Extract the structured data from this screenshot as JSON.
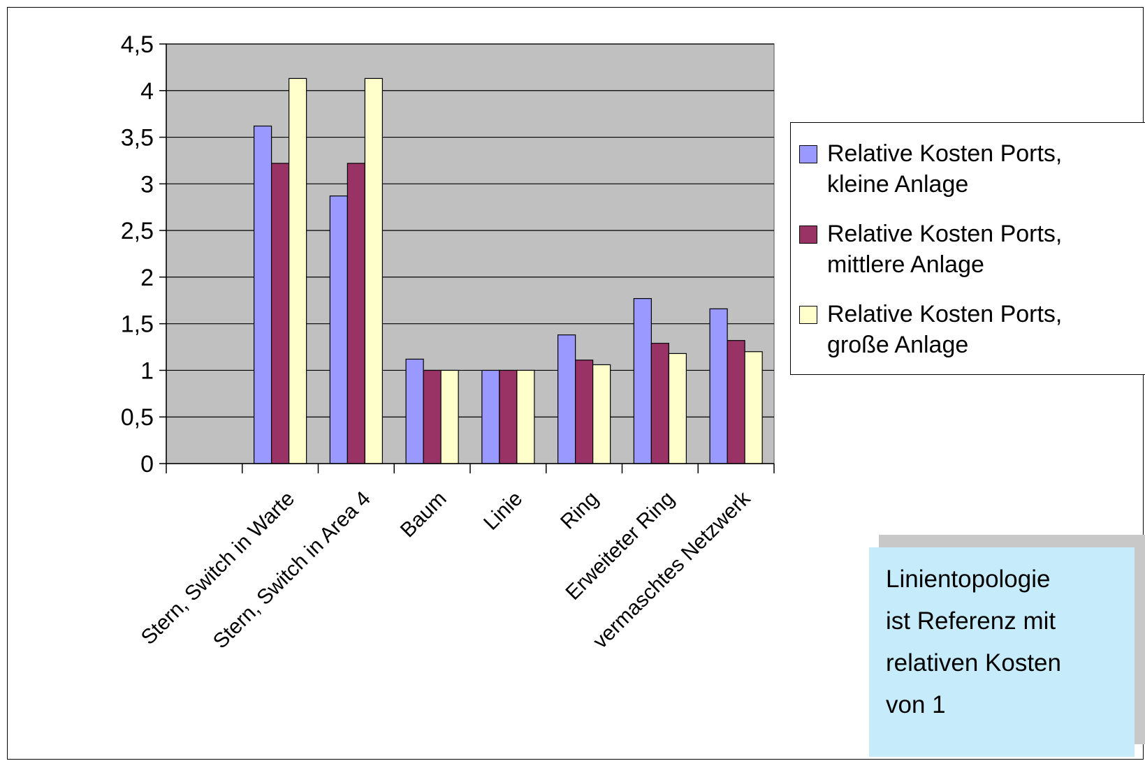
{
  "chart_data": {
    "type": "bar",
    "categories": [
      "",
      "Stern, Switch in Warte",
      "Stern, Switch in Area 4",
      "Baum",
      "Linie",
      "Ring",
      "Erweiteter Ring",
      "vermaschtes Netzwerk"
    ],
    "series": [
      {
        "name": "Relative Kosten Ports, kleine Anlage",
        "color": "#9999ff",
        "values": [
          null,
          3.62,
          2.87,
          1.12,
          1.0,
          1.38,
          1.77,
          1.66
        ]
      },
      {
        "name": "Relative Kosten Ports, mittlere Anlage",
        "color": "#993366",
        "values": [
          null,
          3.22,
          3.22,
          1.0,
          1.0,
          1.11,
          1.29,
          1.32
        ]
      },
      {
        "name": "Relative Kosten Ports, große Anlage",
        "color": "#ffffcc",
        "values": [
          null,
          4.13,
          4.13,
          1.0,
          1.0,
          1.06,
          1.18,
          1.2
        ]
      }
    ],
    "ylim": [
      0,
      4.5
    ],
    "yticks": [
      "0",
      "0,5",
      "1",
      "1,5",
      "2",
      "2,5",
      "3",
      "3,5",
      "4",
      "4,5"
    ],
    "plot_background": "#c0c0c0",
    "grid": true,
    "legend_position": "right"
  },
  "legend": {
    "items": [
      {
        "line1": "Relative Kosten Ports,",
        "line2": "kleine Anlage"
      },
      {
        "line1": "Relative Kosten Ports,",
        "line2": "mittlere Anlage"
      },
      {
        "line1": "Relative Kosten Ports,",
        "line2": "große Anlage"
      }
    ]
  },
  "note": {
    "lines": [
      "Linientopologie",
      "ist Referenz mit",
      "relativen Kosten",
      "von 1"
    ]
  }
}
